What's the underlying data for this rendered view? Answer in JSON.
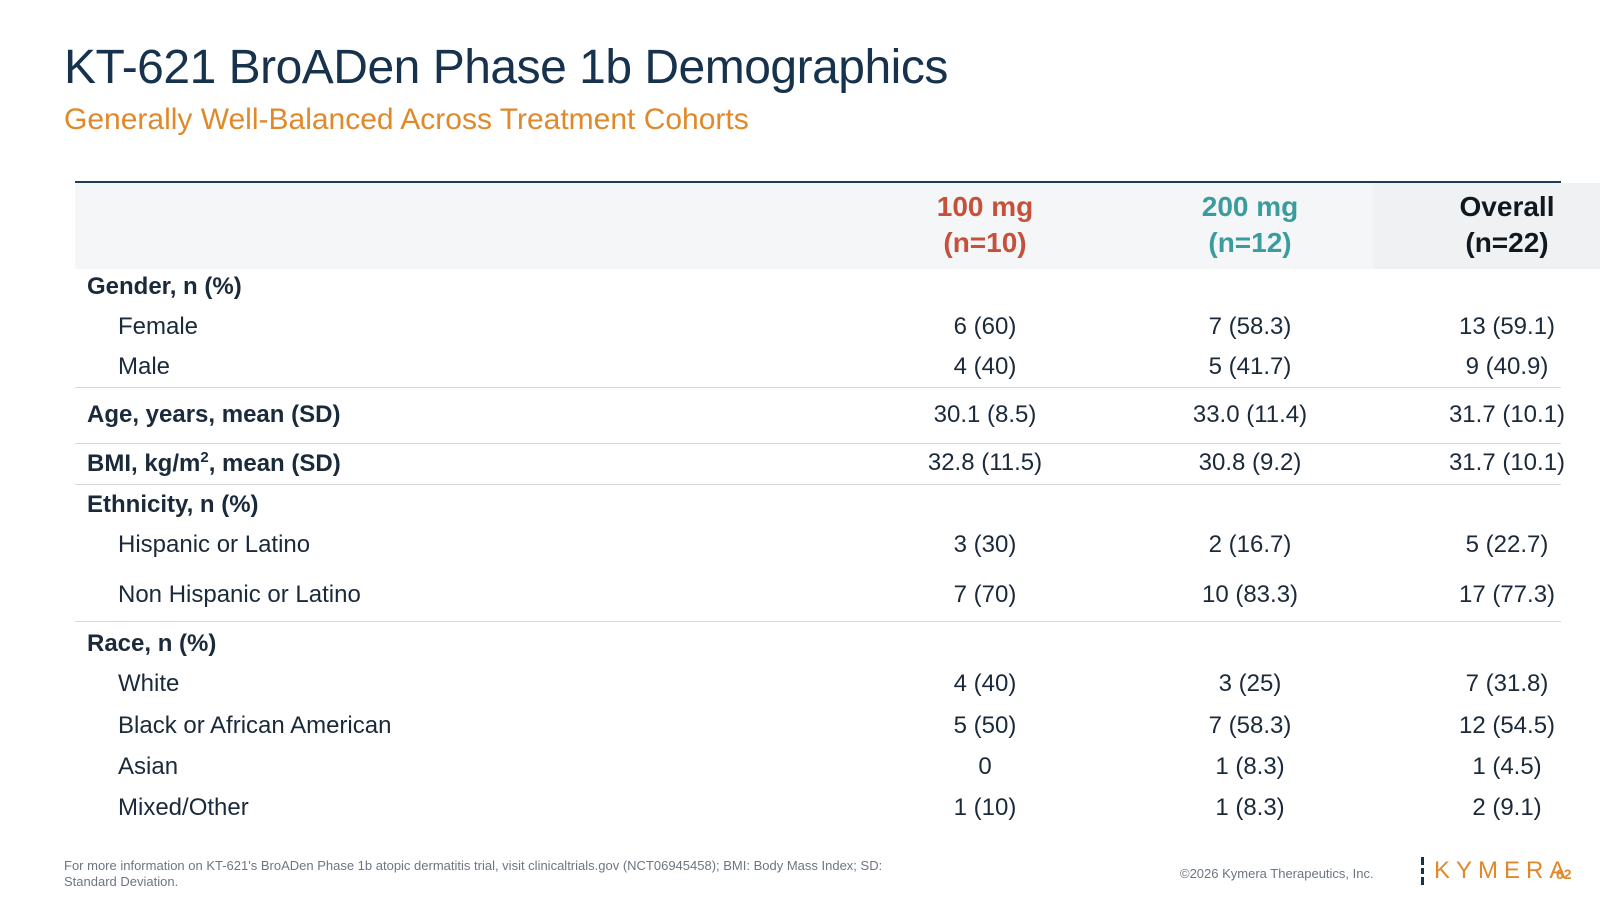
{
  "title": "KT-621 BroADen Phase 1b Demographics",
  "subtitle": "Generally Well-Balanced Across Treatment Cohorts",
  "columns": [
    {
      "dose": "100 mg",
      "n": "(n=10)"
    },
    {
      "dose": "200 mg",
      "n": "(n=12)"
    },
    {
      "dose": "Overall",
      "n": "(n=22)"
    }
  ],
  "colors": {
    "dose_100": "#c5513b",
    "dose_200": "#3a9c9e",
    "accent": "#e0892a",
    "title": "#17324d"
  },
  "rows": {
    "gender": {
      "label": "Gender, n (%)"
    },
    "female": {
      "label": "Female",
      "values": [
        "6 (60)",
        "7 (58.3)",
        "13 (59.1)"
      ]
    },
    "male": {
      "label": "Male",
      "values": [
        "4 (40)",
        "5 (41.7)",
        "9 (40.9)"
      ]
    },
    "age": {
      "label": "Age, years, mean (SD)",
      "values": [
        "30.1 (8.5)",
        "33.0 (11.4)",
        "31.7 (10.1)"
      ]
    },
    "bmi": {
      "label_pre": "BMI, kg/m",
      "label_sup": "2",
      "label_post": ", mean (SD)",
      "values": [
        "32.8 (11.5)",
        "30.8 (9.2)",
        "31.7 (10.1)"
      ]
    },
    "ethnicity": {
      "label": "Ethnicity, n (%)"
    },
    "hispanic": {
      "label": "Hispanic or Latino",
      "values": [
        "3 (30)",
        "2 (16.7)",
        "5 (22.7)"
      ]
    },
    "nonhispanic": {
      "label": "Non Hispanic or Latino",
      "values": [
        "7 (70)",
        "10 (83.3)",
        "17 (77.3)"
      ]
    },
    "race": {
      "label": "Race, n (%)"
    },
    "white": {
      "label": "White",
      "values": [
        "4 (40)",
        "3 (25)",
        "7 (31.8)"
      ]
    },
    "black": {
      "label": "Black or African American",
      "values": [
        "5 (50)",
        "7 (58.3)",
        "12 (54.5)"
      ]
    },
    "asian": {
      "label": "Asian",
      "values": [
        "0",
        "1 (8.3)",
        "1 (4.5)"
      ]
    },
    "mixed": {
      "label": "Mixed/Other",
      "values": [
        "1 (10)",
        "1 (8.3)",
        "2 (9.1)"
      ]
    }
  },
  "footer": {
    "footnote": "For more information on KT-621's BroADen Phase 1b atopic dermatitis trial, visit clinicaltrials.gov (NCT06945458); BMI: Body Mass Index; SD: Standard Deviation.",
    "copyright": "©2026 Kymera Therapeutics, Inc.",
    "logo_text": "KYMERA",
    "page_number": "62"
  }
}
